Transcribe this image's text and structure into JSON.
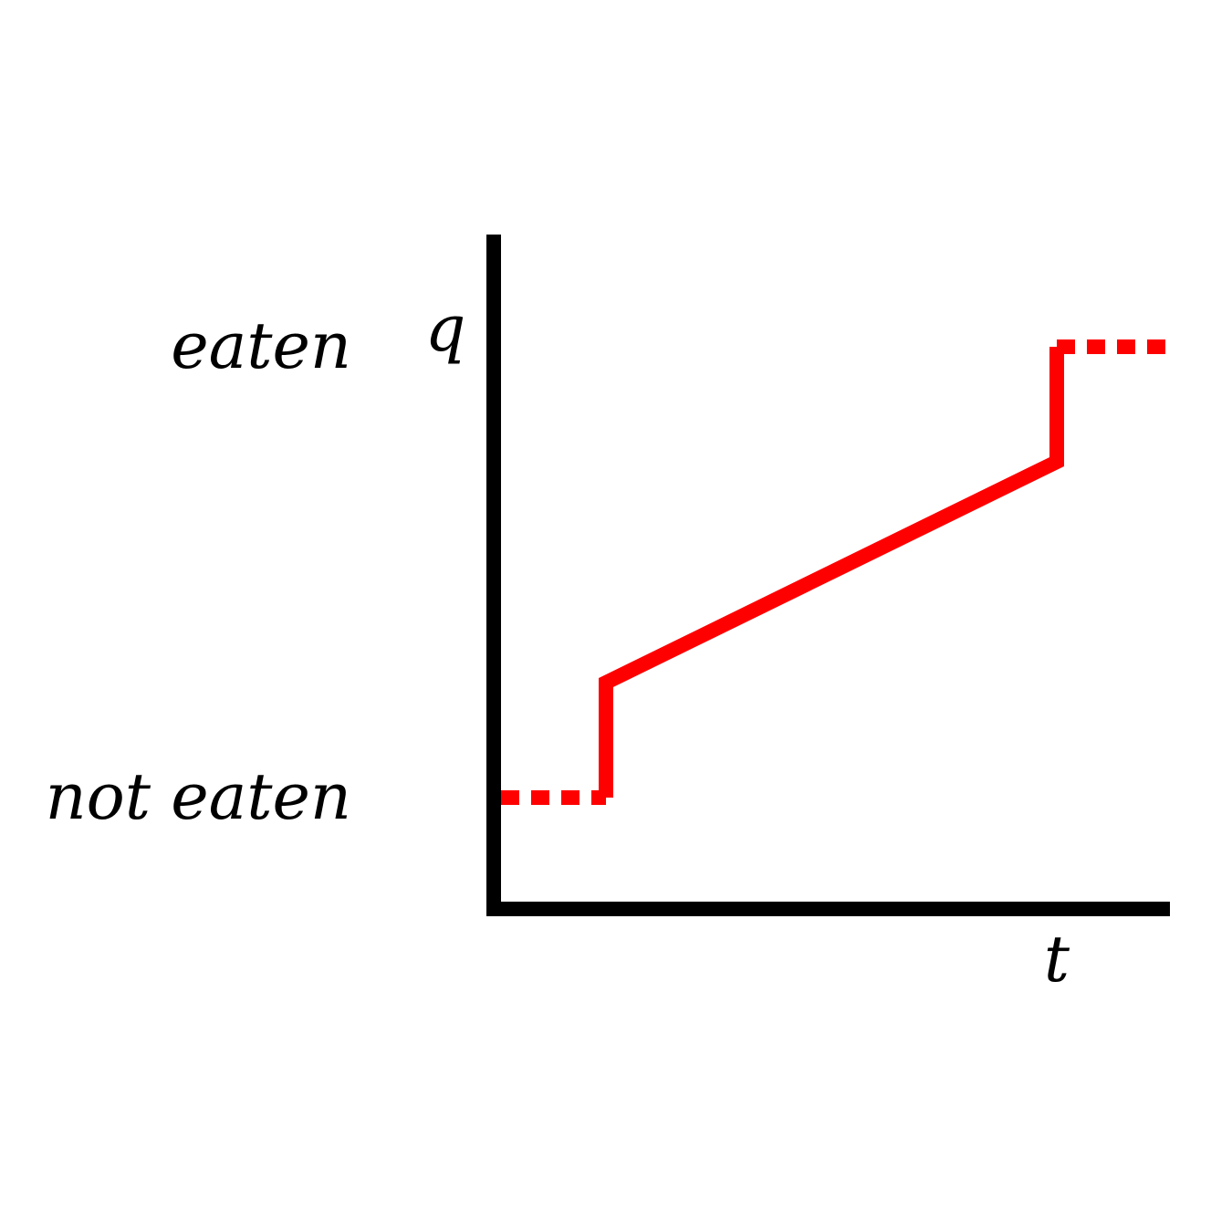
{
  "diagram": {
    "axes": {
      "y_label": "q",
      "x_label": "t"
    },
    "levels": {
      "top": "eaten",
      "bottom": "not eaten"
    },
    "colors": {
      "axis": "#000000",
      "trajectory": "#ff0000"
    }
  }
}
